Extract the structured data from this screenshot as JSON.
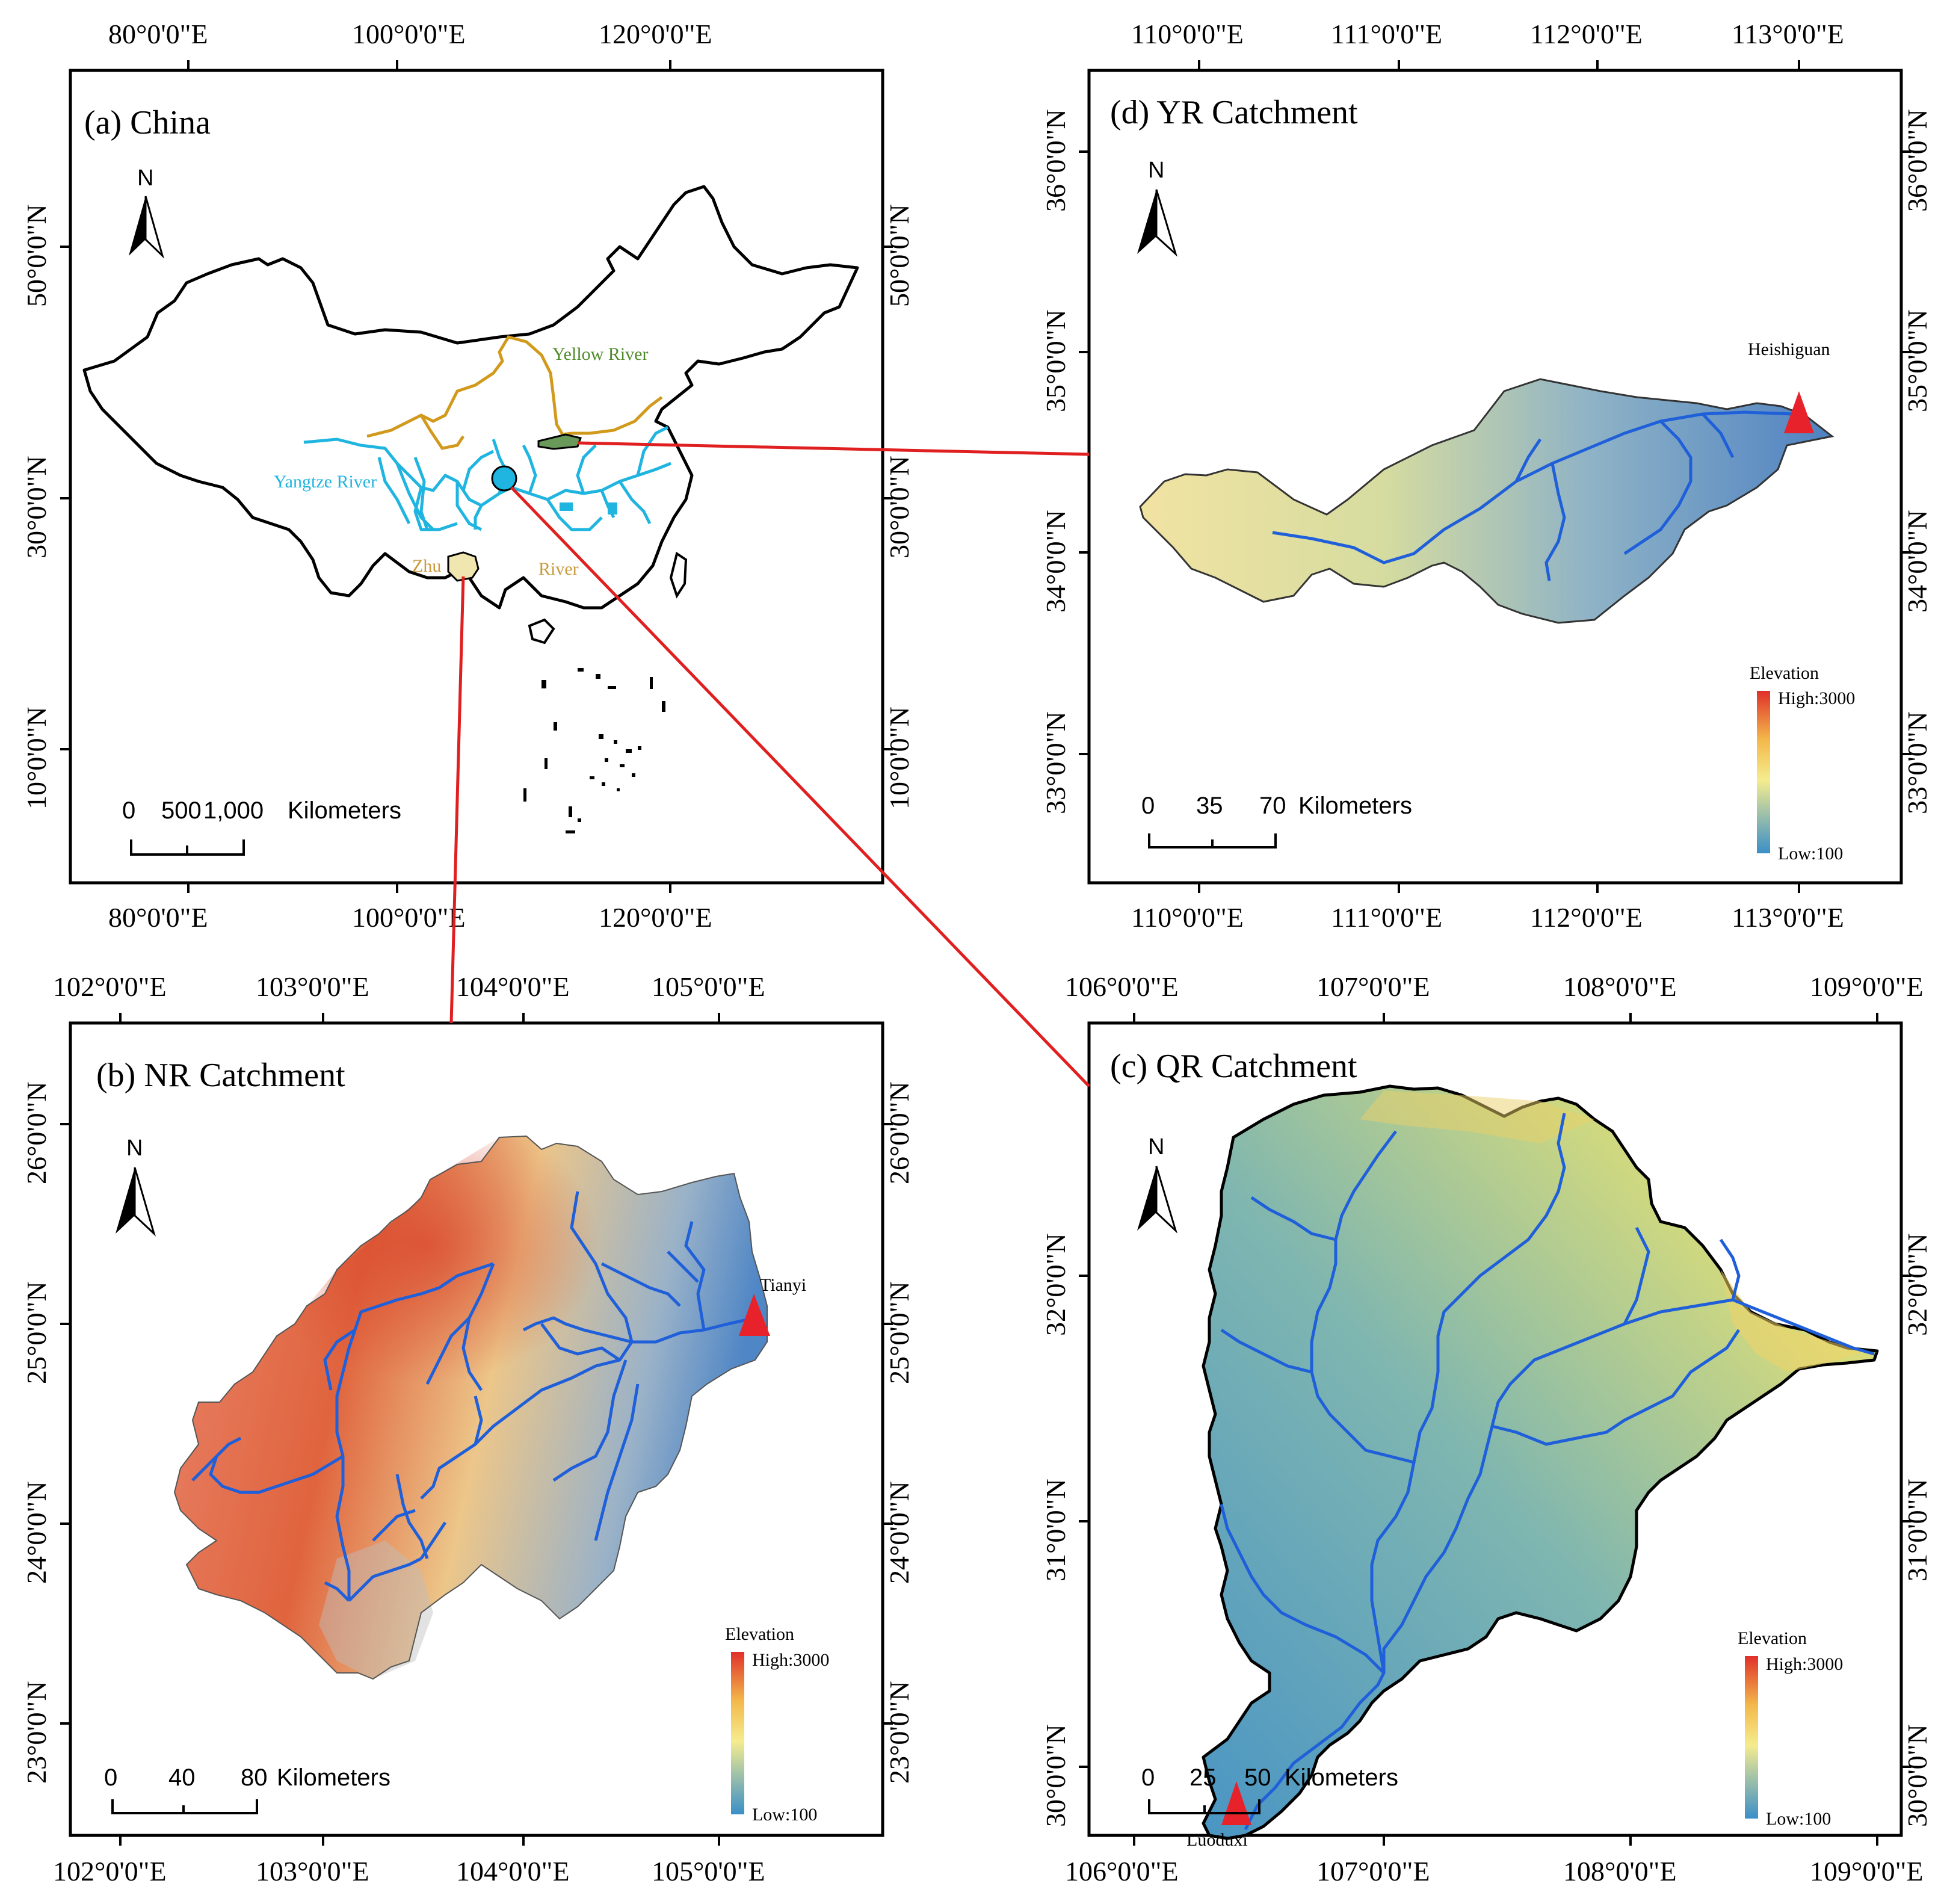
{
  "colors": {
    "yangtze": "#1fb5e0",
    "yellow_river": "#d19a1c",
    "zhu_river": "#c99a3a",
    "yellow_river_label": "#4f8a2a",
    "connector": "#e02020",
    "river_blue": "#1f5fd9",
    "gauge": "#e8222a",
    "elev_high": "#e23a2a",
    "elev_mid": "#f5e98a",
    "elev_low": "#3a8fc8"
  },
  "panel_a": {
    "title": "(a)  China",
    "top_ticks": [
      "80°0'0\"E",
      "100°0'0\"E",
      "120°0'0\"E"
    ],
    "bottom_ticks": [
      "80°0'0\"E",
      "100°0'0\"E",
      "120°0'0\"E"
    ],
    "left_ticks": [
      "50°0'0\"N",
      "30°0'0\"N",
      "10°0'0\"N"
    ],
    "right_ticks": [
      "50°0'0\"N",
      "30°0'0\"N",
      "10°0'0\"N"
    ],
    "labels": {
      "yellow_river": "Yellow River",
      "yangtze_river": "Yangtze River",
      "zhu": "Zhu",
      "river": "River"
    },
    "north": "N",
    "scale": {
      "n0": "0",
      "n1": "500",
      "n2": "1,000",
      "unit": "Kilometers"
    }
  },
  "panel_b": {
    "title": "(b)  NR Catchment",
    "top_ticks": [
      "102°0'0\"E",
      "103°0'0\"E",
      "104°0'0\"E",
      "105°0'0\"E"
    ],
    "bottom_ticks": [
      "102°0'0\"E",
      "103°0'0\"E",
      "104°0'0\"E",
      "105°0'0\"E"
    ],
    "left_ticks": [
      "26°0'0\"N",
      "25°0'0\"N",
      "24°0'0\"N",
      "23°0'0\"N"
    ],
    "right_ticks": [
      "26°0'0\"N",
      "25°0'0\"N",
      "24°0'0\"N",
      "23°0'0\"N"
    ],
    "station": "Tianyi",
    "north": "N",
    "legend": {
      "title": "Elevation",
      "high": "High:3000",
      "low": "Low:100"
    },
    "scale": {
      "n0": "0",
      "n1": "40",
      "n2": "80",
      "unit": "Kilometers"
    }
  },
  "panel_c": {
    "title": "(c)  QR Catchment",
    "top_ticks": [
      "106°0'0\"E",
      "107°0'0\"E",
      "108°0'0\"E",
      "109°0'0\"E"
    ],
    "bottom_ticks": [
      "106°0'0\"E",
      "107°0'0\"E",
      "108°0'0\"E",
      "109°0'0\"E"
    ],
    "left_ticks": [
      "32°0'0\"N",
      "31°0'0\"N",
      "30°0'0\"N"
    ],
    "right_ticks": [
      "32°0'0\"N",
      "31°0'0\"N",
      "30°0'0\"N"
    ],
    "station": "Luoduxi",
    "north": "N",
    "legend": {
      "title": "Elevation",
      "high": "High:3000",
      "low": "Low:100"
    },
    "scale": {
      "n0": "0",
      "n1": "25",
      "n2": "50",
      "unit": "Kilometers"
    }
  },
  "panel_d": {
    "title": "(d)  YR Catchment",
    "top_ticks": [
      "110°0'0\"E",
      "111°0'0\"E",
      "112°0'0\"E",
      "113°0'0\"E"
    ],
    "bottom_ticks": [
      "110°0'0\"E",
      "111°0'0\"E",
      "112°0'0\"E",
      "113°0'0\"E"
    ],
    "left_ticks": [
      "36°0'0\"N",
      "35°0'0\"N",
      "34°0'0\"N",
      "33°0'0\"N"
    ],
    "right_ticks": [
      "36°0'0\"N",
      "35°0'0\"N",
      "34°0'0\"N",
      "33°0'0\"N"
    ],
    "station": "Heishiguan",
    "north": "N",
    "legend": {
      "title": "Elevation",
      "high": "High:3000",
      "low": "Low:100"
    },
    "scale": {
      "n0": "0",
      "n1": "35",
      "n2": "70",
      "unit": "Kilometers"
    }
  }
}
